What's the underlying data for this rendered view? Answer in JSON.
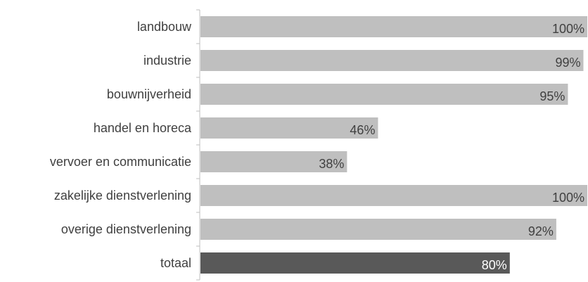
{
  "chart_data": {
    "type": "bar",
    "orientation": "horizontal",
    "categories": [
      "landbouw",
      "industrie",
      "bouwnijverheid",
      "handel en horeca",
      "vervoer en communicatie",
      "zakelijke dienstverlening",
      "overige dienstverlening",
      "totaal"
    ],
    "values": [
      100,
      99,
      95,
      46,
      38,
      100,
      92,
      80
    ],
    "value_labels": [
      "100%",
      "99%",
      "95%",
      "46%",
      "38%",
      "100%",
      "92%",
      "80%"
    ],
    "xlim": [
      0,
      100
    ],
    "grid": false,
    "legend": "none",
    "colors": {
      "bar": "#bfbfbf",
      "highlight_bar": "#595959",
      "axis": "#bfbfbf",
      "text": "#404040",
      "label_on_dark": "#ffffff"
    },
    "highlight_category": "totaal"
  }
}
